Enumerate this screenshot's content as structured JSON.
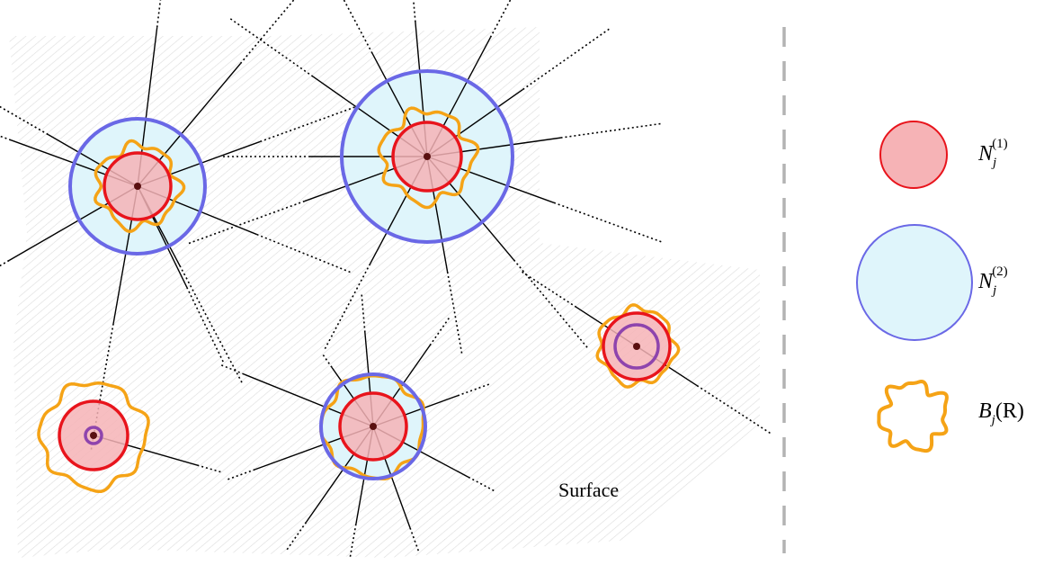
{
  "surface_label": "Surface",
  "colors": {
    "hatch": "#d9d9d9",
    "n1_fill": "#f6b3b6",
    "n1_stroke": "#e8141c",
    "n2_fill": "#dff5fb",
    "n2_stroke": "#6a68e6",
    "ball_stroke": "#f5a316",
    "inner_stroke": "#8e44ad",
    "divider": "#b3b3b3",
    "ray": "#000000",
    "center_dot": "#5a1010"
  },
  "legend": [
    {
      "key": "n1",
      "base": "N",
      "sub": "j",
      "sup": "(1)"
    },
    {
      "key": "n2",
      "base": "N",
      "sub": "j",
      "sup": "(2)"
    },
    {
      "key": "ball",
      "base": "B",
      "sub": "j",
      "suffix": "(R)"
    }
  ]
}
